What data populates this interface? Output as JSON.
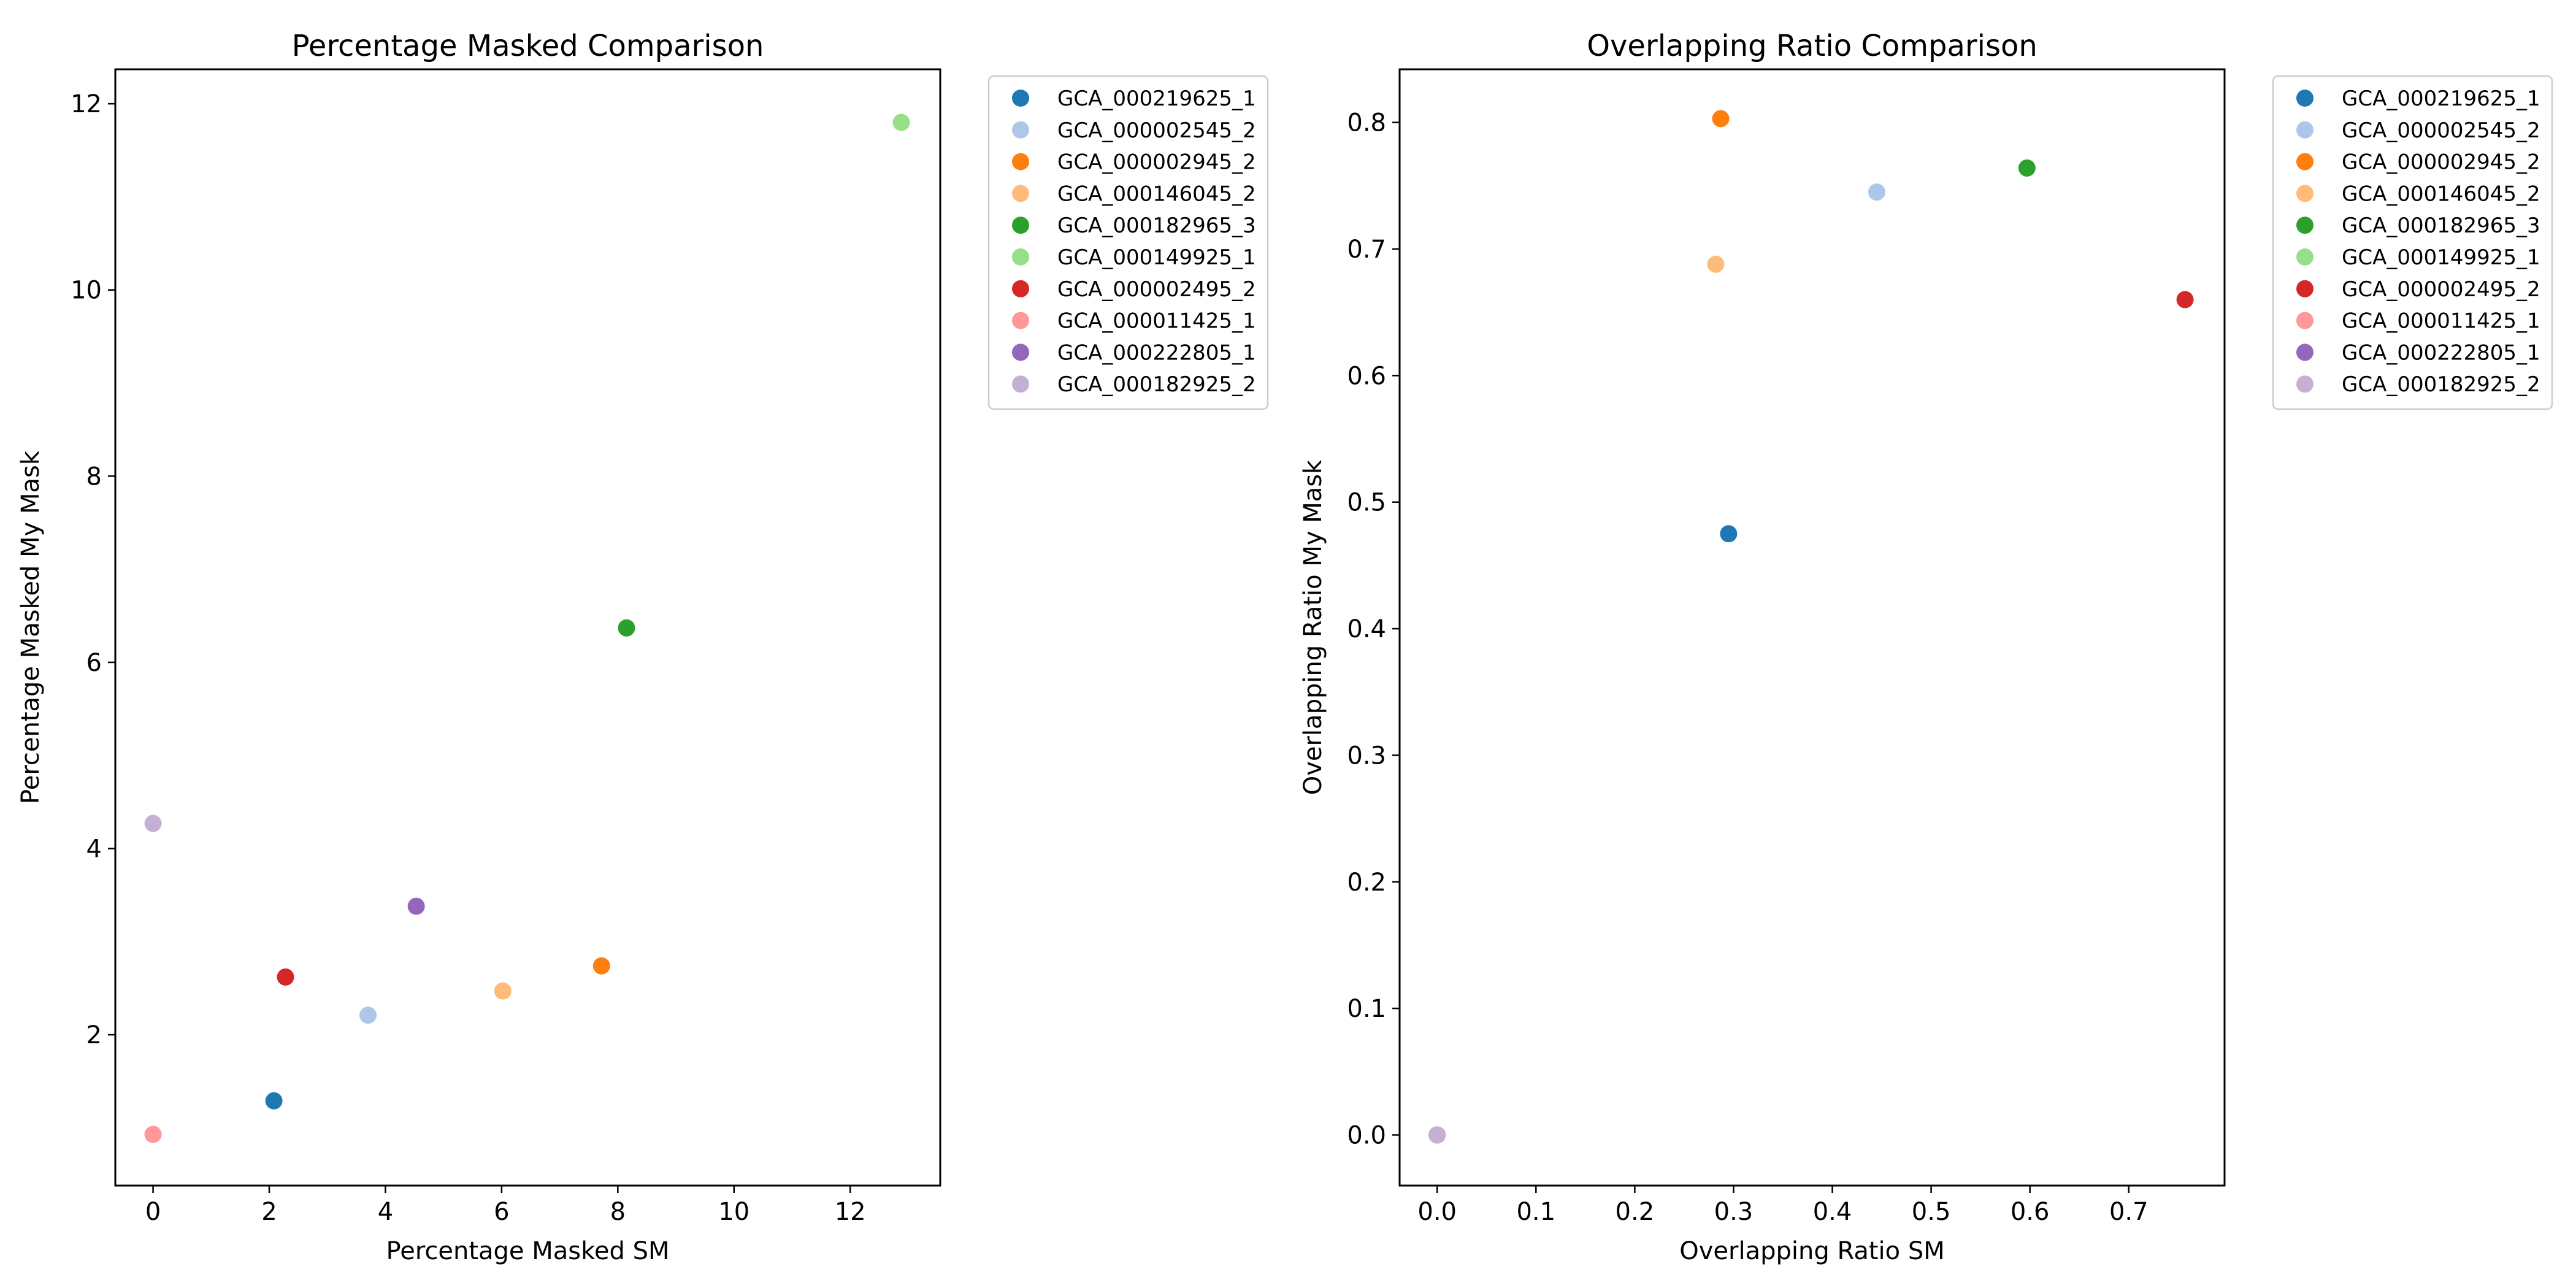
{
  "chart_data": [
    {
      "type": "scatter",
      "title": "Percentage Masked Comparison",
      "xlabel": "Percentage Masked SM",
      "ylabel": "Percentage Masked My Mask",
      "xlim": [
        -0.65,
        13.55
      ],
      "ylim": [
        0.38,
        12.37
      ],
      "x_ticks": [
        0,
        2,
        4,
        6,
        8,
        10,
        12
      ],
      "x_tick_labels": [
        "0",
        "2",
        "4",
        "6",
        "8",
        "10",
        "12"
      ],
      "y_ticks": [
        2,
        4,
        6,
        8,
        10,
        12
      ],
      "y_tick_labels": [
        "2",
        "4",
        "6",
        "8",
        "10",
        "12"
      ],
      "grid": false,
      "legend_placement": "outside-upper-right",
      "series": [
        {
          "name": "GCA_000219625_1",
          "color": "#1f77b4",
          "x": [
            2.08
          ],
          "y": [
            1.29
          ]
        },
        {
          "name": "GCA_000002545_2",
          "color": "#aec7e8",
          "x": [
            3.7
          ],
          "y": [
            2.21
          ]
        },
        {
          "name": "GCA_000002945_2",
          "color": "#ff7f0e",
          "x": [
            7.72
          ],
          "y": [
            2.74
          ]
        },
        {
          "name": "GCA_000146045_2",
          "color": "#ffbb78",
          "x": [
            6.02
          ],
          "y": [
            2.47
          ]
        },
        {
          "name": "GCA_000182965_3",
          "color": "#2ca02c",
          "x": [
            8.15
          ],
          "y": [
            6.37
          ]
        },
        {
          "name": "GCA_000149925_1",
          "color": "#98df8a",
          "x": [
            12.88
          ],
          "y": [
            11.8
          ]
        },
        {
          "name": "GCA_000002495_2",
          "color": "#d62728",
          "x": [
            2.28
          ],
          "y": [
            2.62
          ]
        },
        {
          "name": "GCA_000011425_1",
          "color": "#ff9896",
          "x": [
            0.0
          ],
          "y": [
            0.93
          ]
        },
        {
          "name": "GCA_000222805_1",
          "color": "#9467bd",
          "x": [
            4.53
          ],
          "y": [
            3.38
          ]
        },
        {
          "name": "GCA_000182925_2",
          "color": "#c5b0d5",
          "x": [
            0.0
          ],
          "y": [
            4.27
          ]
        }
      ]
    },
    {
      "type": "scatter",
      "title": "Overlapping Ratio Comparison",
      "xlabel": "Overlapping Ratio SM",
      "ylabel": "Overlapping Ratio My Mask",
      "xlim": [
        -0.038,
        0.797
      ],
      "ylim": [
        -0.04,
        0.842
      ],
      "x_ticks": [
        0.0,
        0.1,
        0.2,
        0.3,
        0.4,
        0.5,
        0.6,
        0.7
      ],
      "x_tick_labels": [
        "0.0",
        "0.1",
        "0.2",
        "0.3",
        "0.4",
        "0.5",
        "0.6",
        "0.7"
      ],
      "y_ticks": [
        0.0,
        0.1,
        0.2,
        0.3,
        0.4,
        0.5,
        0.6,
        0.7,
        0.8
      ],
      "y_tick_labels": [
        "0.0",
        "0.1",
        "0.2",
        "0.3",
        "0.4",
        "0.5",
        "0.6",
        "0.7",
        "0.8"
      ],
      "grid": false,
      "legend_placement": "outside-upper-right",
      "series": [
        {
          "name": "GCA_000219625_1",
          "color": "#1f77b4",
          "x": [
            0.295
          ],
          "y": [
            0.475
          ]
        },
        {
          "name": "GCA_000002545_2",
          "color": "#aec7e8",
          "x": [
            0.445
          ],
          "y": [
            0.745
          ]
        },
        {
          "name": "GCA_000002945_2",
          "color": "#ff7f0e",
          "x": [
            0.287
          ],
          "y": [
            0.803
          ]
        },
        {
          "name": "GCA_000146045_2",
          "color": "#ffbb78",
          "x": [
            0.282
          ],
          "y": [
            0.688
          ]
        },
        {
          "name": "GCA_000182965_3",
          "color": "#2ca02c",
          "x": [
            0.597
          ],
          "y": [
            0.764
          ]
        },
        {
          "name": "GCA_000149925_1",
          "color": "#98df8a",
          "x": [
            0.0
          ],
          "y": [
            0.0
          ]
        },
        {
          "name": "GCA_000002495_2",
          "color": "#d62728",
          "x": [
            0.757
          ],
          "y": [
            0.66
          ]
        },
        {
          "name": "GCA_000011425_1",
          "color": "#ff9896",
          "x": [
            0.0
          ],
          "y": [
            0.0
          ]
        },
        {
          "name": "GCA_000222805_1",
          "color": "#9467bd",
          "x": [
            0.0
          ],
          "y": [
            0.0
          ]
        },
        {
          "name": "GCA_000182925_2",
          "color": "#c5b0d5",
          "x": [
            0.0
          ],
          "y": [
            0.0
          ]
        }
      ]
    }
  ]
}
